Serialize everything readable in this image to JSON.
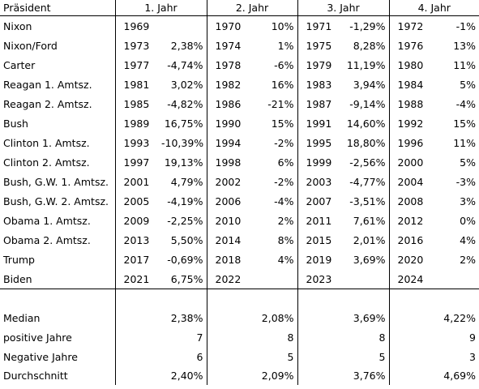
{
  "header": {
    "president": "Präsident",
    "years": [
      "1. Jahr",
      "2. Jahr",
      "3. Jahr",
      "4. Jahr"
    ]
  },
  "rows": [
    {
      "name": "Nixon",
      "cells": [
        [
          "1969",
          ""
        ],
        [
          "1970",
          "10%"
        ],
        [
          "1971",
          "-1,29%"
        ],
        [
          "1972",
          "-1%"
        ]
      ]
    },
    {
      "name": "Nixon/Ford",
      "cells": [
        [
          "1973",
          "2,38%"
        ],
        [
          "1974",
          "1%"
        ],
        [
          "1975",
          "8,28%"
        ],
        [
          "1976",
          "13%"
        ]
      ]
    },
    {
      "name": "Carter",
      "cells": [
        [
          "1977",
          "-4,74%"
        ],
        [
          "1978",
          "-6%"
        ],
        [
          "1979",
          "11,19%"
        ],
        [
          "1980",
          "11%"
        ]
      ]
    },
    {
      "name": "Reagan 1. Amtsz.",
      "cells": [
        [
          "1981",
          "3,02%"
        ],
        [
          "1982",
          "16%"
        ],
        [
          "1983",
          "3,94%"
        ],
        [
          "1984",
          "5%"
        ]
      ]
    },
    {
      "name": "Reagan 2. Amtsz.",
      "cells": [
        [
          "1985",
          "-4,82%"
        ],
        [
          "1986",
          "-21%"
        ],
        [
          "1987",
          "-9,14%"
        ],
        [
          "1988",
          "-4%"
        ]
      ]
    },
    {
      "name": "Bush",
      "cells": [
        [
          "1989",
          "16,75%"
        ],
        [
          "1990",
          "15%"
        ],
        [
          "1991",
          "14,60%"
        ],
        [
          "1992",
          "15%"
        ]
      ]
    },
    {
      "name": "Clinton 1. Amtsz.",
      "cells": [
        [
          "1993",
          "-10,39%"
        ],
        [
          "1994",
          "-2%"
        ],
        [
          "1995",
          "18,80%"
        ],
        [
          "1996",
          "11%"
        ]
      ]
    },
    {
      "name": "Clinton 2. Amtsz.",
      "cells": [
        [
          "1997",
          "19,13%"
        ],
        [
          "1998",
          "6%"
        ],
        [
          "1999",
          "-2,56%"
        ],
        [
          "2000",
          "5%"
        ]
      ]
    },
    {
      "name": "Bush, G.W. 1. Amtsz.",
      "cells": [
        [
          "2001",
          "4,79%"
        ],
        [
          "2002",
          "-2%"
        ],
        [
          "2003",
          "-4,77%"
        ],
        [
          "2004",
          "-3%"
        ]
      ]
    },
    {
      "name": "Bush, G.W. 2. Amtsz.",
      "cells": [
        [
          "2005",
          "-4,19%"
        ],
        [
          "2006",
          "-4%"
        ],
        [
          "2007",
          "-3,51%"
        ],
        [
          "2008",
          "3%"
        ]
      ]
    },
    {
      "name": "Obama 1. Amtsz.",
      "cells": [
        [
          "2009",
          "-2,25%"
        ],
        [
          "2010",
          "2%"
        ],
        [
          "2011",
          "7,61%"
        ],
        [
          "2012",
          "0%"
        ]
      ]
    },
    {
      "name": "Obama 2. Amtsz.",
      "cells": [
        [
          "2013",
          "5,50%"
        ],
        [
          "2014",
          "8%"
        ],
        [
          "2015",
          "2,01%"
        ],
        [
          "2016",
          "4%"
        ]
      ]
    },
    {
      "name": "Trump",
      "cells": [
        [
          "2017",
          "-0,69%"
        ],
        [
          "2018",
          "4%"
        ],
        [
          "2019",
          "3,69%"
        ],
        [
          "2020",
          "2%"
        ]
      ]
    },
    {
      "name": "Biden",
      "cells": [
        [
          "2021",
          "6,75%"
        ],
        [
          "2022",
          ""
        ],
        [
          "2023",
          ""
        ],
        [
          "2024",
          ""
        ]
      ]
    }
  ],
  "stats": [
    {
      "label": "Median",
      "values": [
        "2,38%",
        "2,08%",
        "3,69%",
        "4,22%"
      ]
    },
    {
      "label": "positive Jahre",
      "values": [
        "7",
        "8",
        "8",
        "9"
      ]
    },
    {
      "label": "Negative Jahre",
      "values": [
        "6",
        "5",
        "5",
        "3"
      ]
    },
    {
      "label": "Durchschnitt",
      "values": [
        "2,40%",
        "2,09%",
        "3,76%",
        "4,69%"
      ]
    }
  ]
}
